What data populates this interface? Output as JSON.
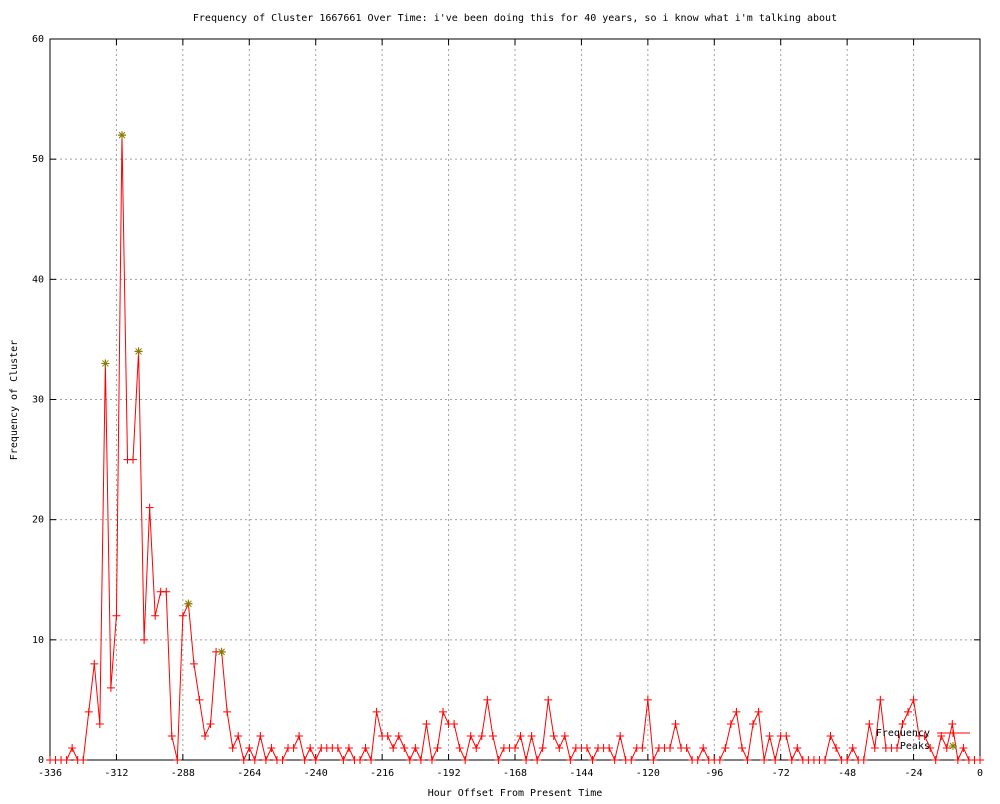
{
  "chart_data": {
    "type": "line",
    "title": "Frequency of Cluster 1667661 Over Time: i've been doing this for 40 years, so i know what i'm talking about",
    "x_label": "Hour Offset From Present Time",
    "y_label": "Frequency of Cluster",
    "xlim": [
      -336,
      0
    ],
    "xticks": [
      -336,
      -312,
      -288,
      -264,
      -240,
      -216,
      -192,
      -168,
      -144,
      -120,
      -96,
      -72,
      -48,
      -24,
      0
    ],
    "ylim": [
      0,
      60
    ],
    "yticks": [
      0,
      10,
      20,
      30,
      40,
      50,
      60
    ],
    "grid": true,
    "legend": "bottom-right",
    "series": [
      {
        "name": "Frequency",
        "color": "#ff0000",
        "marker": "plus",
        "x": [
          -336,
          -334,
          -332,
          -330,
          -328,
          -326,
          -324,
          -322,
          -320,
          -318,
          -316,
          -314,
          -312,
          -310,
          -308,
          -306,
          -304,
          -302,
          -300,
          -298,
          -296,
          -294,
          -292,
          -290,
          -288,
          -286,
          -284,
          -282,
          -280,
          -278,
          -276,
          -274,
          -272,
          -270,
          -268,
          -266,
          -264,
          -262,
          -260,
          -258,
          -256,
          -254,
          -252,
          -250,
          -248,
          -246,
          -244,
          -242,
          -240,
          -238,
          -236,
          -234,
          -232,
          -230,
          -228,
          -226,
          -224,
          -222,
          -220,
          -218,
          -216,
          -214,
          -212,
          -210,
          -208,
          -206,
          -204,
          -202,
          -200,
          -198,
          -196,
          -194,
          -192,
          -190,
          -188,
          -186,
          -184,
          -182,
          -180,
          -178,
          -176,
          -174,
          -172,
          -170,
          -168,
          -166,
          -164,
          -162,
          -160,
          -158,
          -156,
          -154,
          -152,
          -150,
          -148,
          -146,
          -144,
          -142,
          -140,
          -138,
          -136,
          -134,
          -132,
          -130,
          -128,
          -126,
          -124,
          -122,
          -120,
          -118,
          -116,
          -114,
          -112,
          -110,
          -108,
          -106,
          -104,
          -102,
          -100,
          -98,
          -96,
          -94,
          -92,
          -90,
          -88,
          -86,
          -84,
          -82,
          -80,
          -78,
          -76,
          -74,
          -72,
          -70,
          -68,
          -66,
          -64,
          -62,
          -60,
          -58,
          -56,
          -54,
          -52,
          -50,
          -48,
          -46,
          -44,
          -42,
          -40,
          -38,
          -36,
          -34,
          -32,
          -30,
          -28,
          -26,
          -24,
          -22,
          -20,
          -18,
          -16,
          -14,
          -12,
          -10,
          -8,
          -6,
          -4,
          -2,
          0
        ],
        "values": [
          0,
          0,
          0,
          0,
          1,
          0,
          0,
          4,
          8,
          3,
          33,
          6,
          12,
          52,
          25,
          25,
          34,
          10,
          21,
          12,
          14,
          14,
          2,
          0,
          12,
          13,
          8,
          5,
          2,
          3,
          9,
          9,
          4,
          1,
          2,
          0,
          1,
          0,
          2,
          0,
          1,
          0,
          0,
          1,
          1,
          2,
          0,
          1,
          0,
          1,
          1,
          1,
          1,
          0,
          1,
          0,
          0,
          1,
          0,
          4,
          2,
          2,
          1,
          2,
          1,
          0,
          1,
          0,
          3,
          0,
          1,
          4,
          3,
          3,
          1,
          0,
          2,
          1,
          2,
          5,
          2,
          0,
          1,
          1,
          1,
          2,
          0,
          2,
          0,
          1,
          5,
          2,
          1,
          2,
          0,
          1,
          1,
          1,
          0,
          1,
          1,
          1,
          0,
          2,
          0,
          0,
          1,
          1,
          5,
          0,
          1,
          1,
          1,
          3,
          1,
          1,
          0,
          0,
          1,
          0,
          0,
          0,
          1,
          3,
          4,
          1,
          0,
          3,
          4,
          0,
          2,
          0,
          2,
          2,
          0,
          1,
          0,
          0,
          0,
          0,
          0,
          2,
          1,
          0,
          0,
          1,
          0,
          0,
          3,
          1,
          5,
          1,
          1,
          1,
          3,
          4,
          5,
          2,
          2,
          1,
          0,
          2,
          1,
          3,
          0,
          1,
          0,
          0,
          0
        ]
      },
      {
        "name": "Peaks",
        "color": "#808000",
        "marker": "star",
        "x": [
          -316,
          -310,
          -304,
          -286,
          -274
        ],
        "values": [
          33,
          52,
          34,
          13,
          9
        ]
      }
    ]
  }
}
